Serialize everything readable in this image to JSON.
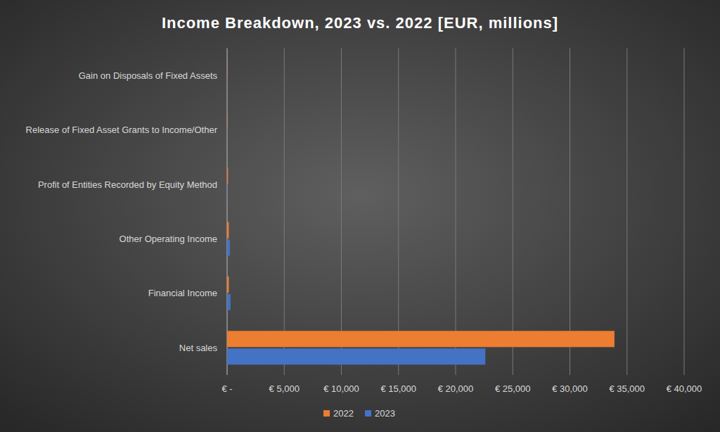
{
  "chart_data": {
    "type": "bar",
    "orientation": "horizontal",
    "title": "Income Breakdown, 2023 vs. 2022 [EUR, millions]",
    "categories": [
      "Gain on Disposals of Fixed Assets",
      "Release of Fixed Asset Grants to Income/Other",
      "Profit of Entities Recorded by Equity Method",
      "Other Operating Income",
      "Financial Income",
      "Net sales"
    ],
    "series": [
      {
        "name": "2022",
        "color": "#ed7d31",
        "values": [
          20,
          30,
          80,
          150,
          150,
          33900
        ]
      },
      {
        "name": "2023",
        "color": "#4472c4",
        "values": [
          10,
          10,
          20,
          250,
          300,
          22600
        ]
      }
    ],
    "xlim": [
      0,
      40000
    ],
    "xticks": [
      {
        "value": 0,
        "label": "€ -"
      },
      {
        "value": 5000,
        "label": "€ 5,000"
      },
      {
        "value": 10000,
        "label": "€ 10,000"
      },
      {
        "value": 15000,
        "label": "€ 15,000"
      },
      {
        "value": 20000,
        "label": "€ 20,000"
      },
      {
        "value": 25000,
        "label": "€ 25,000"
      },
      {
        "value": 30000,
        "label": "€ 30,000"
      },
      {
        "value": 35000,
        "label": "€ 35,000"
      },
      {
        "value": 40000,
        "label": "€ 40,000"
      }
    ],
    "grid": true,
    "legend": "bottom"
  }
}
